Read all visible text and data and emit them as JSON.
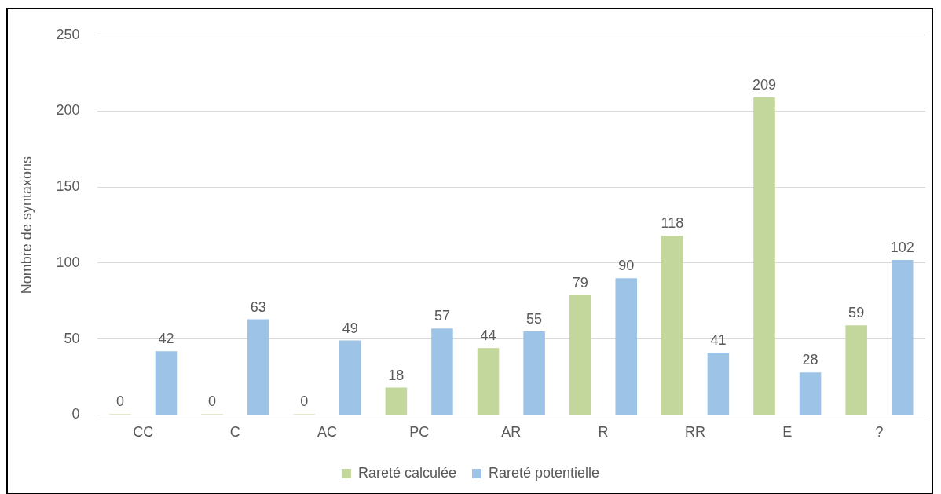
{
  "chart_data": {
    "type": "bar",
    "ylabel": "Nombre de syntaxons",
    "categories": [
      "CC",
      "C",
      "AC",
      "PC",
      "AR",
      "R",
      "RR",
      "E",
      "?"
    ],
    "series": [
      {
        "name": "Rareté calculée",
        "color": "#c3d69b",
        "values": [
          0,
          0,
          0,
          18,
          44,
          79,
          118,
          209,
          59
        ]
      },
      {
        "name": "Rareté potentielle",
        "color": "#9dc3e6",
        "values": [
          42,
          63,
          49,
          57,
          55,
          90,
          41,
          28,
          102
        ]
      }
    ],
    "ylim": [
      0,
      250
    ],
    "yticks": [
      0,
      50,
      100,
      150,
      200,
      250
    ],
    "grid": "y",
    "legend": "bottom",
    "data_labels": true
  }
}
